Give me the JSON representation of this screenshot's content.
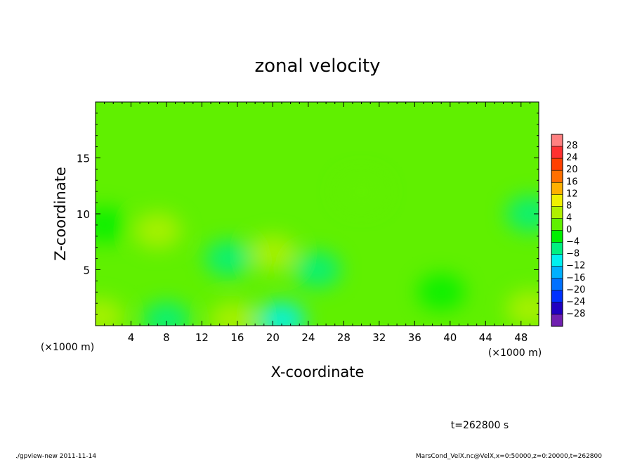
{
  "chart_data": {
    "type": "heatmap",
    "title": "zonal velocity",
    "xlabel": "X-coordinate",
    "ylabel": "Z-coordinate",
    "x_unit_label": "(×1000 m)",
    "y_unit_label": "(×1000 m)",
    "xlim": [
      0,
      50
    ],
    "ylim": [
      0,
      20
    ],
    "x_ticks": [
      4,
      8,
      12,
      16,
      20,
      24,
      28,
      32,
      36,
      40,
      44,
      48
    ],
    "y_ticks": [
      5,
      10,
      15
    ],
    "colorbar": {
      "levels": [
        28,
        24,
        20,
        16,
        12,
        8,
        4,
        0,
        -4,
        -8,
        -12,
        -16,
        -20,
        -24,
        -28
      ],
      "labels": [
        "28",
        "24",
        "20",
        "16",
        "12",
        "8",
        "4",
        "0",
        "−4",
        "−8",
        "−12",
        "−16",
        "−20",
        "−24",
        "−28"
      ],
      "colors": [
        "#ff8080",
        "#ff3030",
        "#ff4000",
        "#ff7000",
        "#ffb000",
        "#f0f000",
        "#b0f000",
        "#60f000",
        "#00f000",
        "#00f080",
        "#00f0f0",
        "#00b0ff",
        "#0070ff",
        "#0030ff",
        "#2000c0",
        "#7020b0"
      ]
    },
    "background_value": 0,
    "features": [
      {
        "x": 7,
        "z": 8.5,
        "value": 7
      },
      {
        "x": 20,
        "z": 6.5,
        "value": 4
      },
      {
        "x": 15,
        "z": 6,
        "value": -5
      },
      {
        "x": 8,
        "z": 0.5,
        "value": -8
      },
      {
        "x": 21,
        "z": 0.5,
        "value": -9
      },
      {
        "x": 25,
        "z": 5,
        "value": -5
      },
      {
        "x": 49,
        "z": 10,
        "value": -6
      },
      {
        "x": 1,
        "z": 9,
        "value": -4
      },
      {
        "x": 0.5,
        "z": 0.8,
        "value": 7
      },
      {
        "x": 49,
        "z": 1.5,
        "value": 6
      },
      {
        "x": 15.5,
        "z": 0.5,
        "value": 4
      },
      {
        "x": 30,
        "z": 12,
        "value": 2
      },
      {
        "x": 39,
        "z": 3,
        "value": -3
      }
    ]
  },
  "annotation_time": "t=262800 s",
  "footer_left": "./gpview-new  2011-11-14",
  "footer_right": "MarsCond_VelX.nc@VelX,x=0:50000,z=0:20000,t=262800"
}
